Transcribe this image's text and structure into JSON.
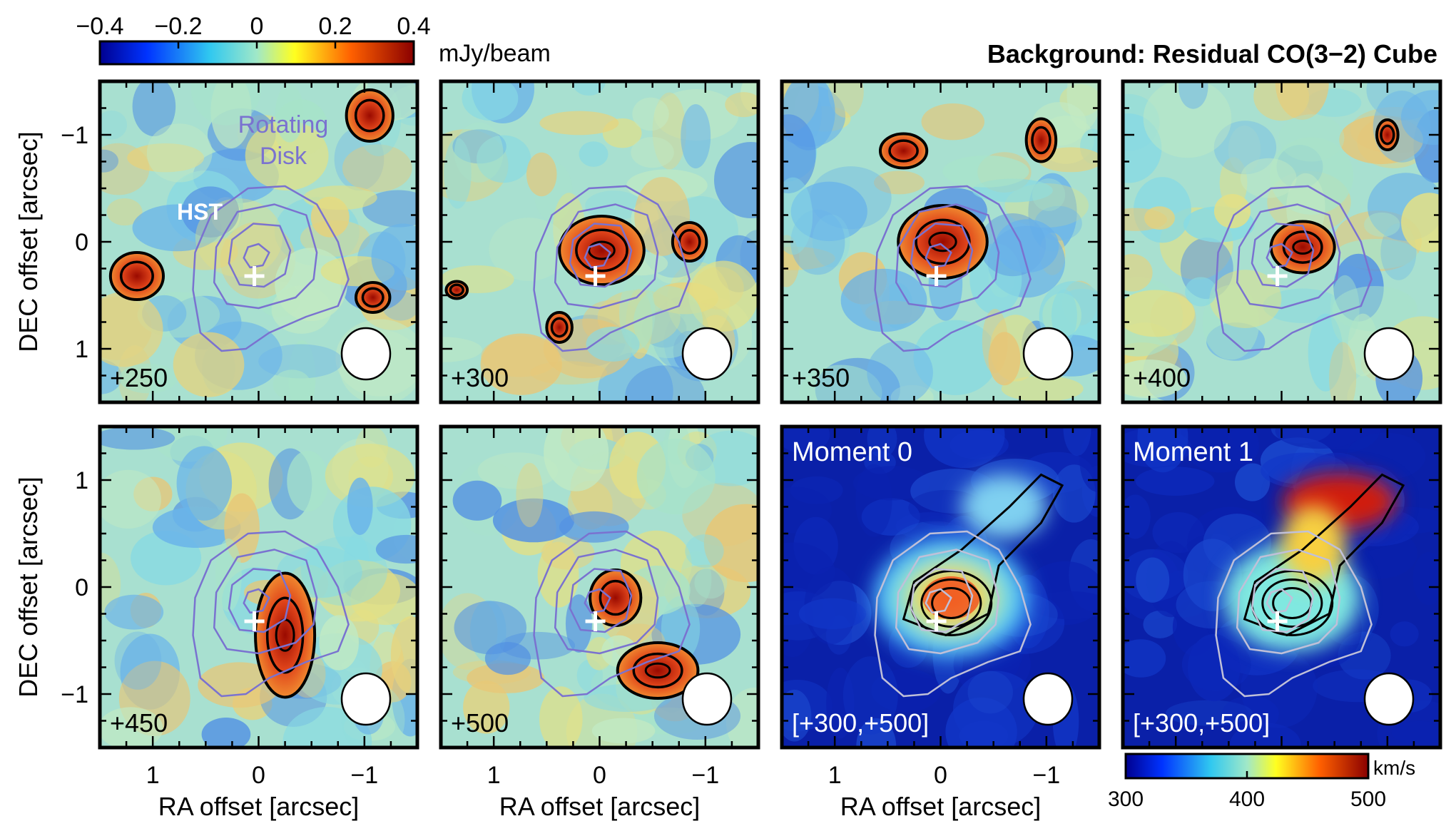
{
  "chart_data": {
    "type": "heatmap",
    "title": "Background: Residual CO(3−2) Cube",
    "xlabel": "RA offset [arcsec]",
    "ylabel": "DEC offset [arcsec]",
    "xlim": [
      1.5,
      -1.5
    ],
    "ylim": [
      1.5,
      -1.5
    ],
    "x_ticks": [
      "1",
      "0",
      "−1"
    ],
    "y_ticks_top": [
      "−1",
      "0",
      "1"
    ],
    "y_ticks_bottom": [
      "1",
      "0",
      "−1"
    ],
    "flux_colorbar": {
      "unit": "mJy/beam",
      "range": [
        -0.4,
        0.4
      ],
      "ticks": [
        "−0.4",
        "−0.2",
        "0",
        "0.2",
        "0.4"
      ]
    },
    "velocity_colorbar": {
      "unit": "km/s",
      "range": [
        300,
        500
      ],
      "ticks": [
        "300",
        "400",
        "500"
      ]
    },
    "annotations": {
      "rotating_disk": [
        "Rotating",
        "Disk"
      ],
      "hst": "HST"
    },
    "hst_position": [
      0.04,
      0.32
    ],
    "panels": [
      {
        "label": "+250",
        "kind": "channel",
        "velocity_kms": 250
      },
      {
        "label": "+300",
        "kind": "channel",
        "velocity_kms": 300
      },
      {
        "label": "+350",
        "kind": "channel",
        "velocity_kms": 350
      },
      {
        "label": "+400",
        "kind": "channel",
        "velocity_kms": 400
      },
      {
        "label": "+450",
        "kind": "channel",
        "velocity_kms": 450
      },
      {
        "label": "+500",
        "kind": "channel",
        "velocity_kms": 500
      },
      {
        "label": "Moment 0",
        "kind": "moment0",
        "range_label": "[+300,+500]"
      },
      {
        "label": "Moment 1",
        "kind": "moment1",
        "range_label": "[+300,+500]"
      }
    ],
    "disk_contours_arcsec": [
      [
        [
          -0.85,
          0.35
        ],
        [
          -0.75,
          0.0
        ],
        [
          -0.55,
          -0.35
        ],
        [
          -0.25,
          -0.52
        ],
        [
          0.1,
          -0.5
        ],
        [
          0.45,
          -0.25
        ],
        [
          0.6,
          0.1
        ],
        [
          0.62,
          0.45
        ],
        [
          0.55,
          0.85
        ],
        [
          0.35,
          1.02
        ],
        [
          0.12,
          1.0
        ],
        [
          -0.1,
          0.85
        ],
        [
          -0.45,
          0.7
        ],
        [
          -0.75,
          0.6
        ]
      ],
      [
        [
          -0.55,
          0.1
        ],
        [
          -0.45,
          -0.25
        ],
        [
          -0.15,
          -0.35
        ],
        [
          0.2,
          -0.28
        ],
        [
          0.4,
          0.05
        ],
        [
          0.42,
          0.38
        ],
        [
          0.3,
          0.58
        ],
        [
          0.0,
          0.62
        ],
        [
          -0.35,
          0.52
        ],
        [
          -0.52,
          0.35
        ]
      ],
      [
        [
          -0.3,
          0.08
        ],
        [
          -0.2,
          -0.15
        ],
        [
          0.05,
          -0.17
        ],
        [
          0.25,
          -0.02
        ],
        [
          0.28,
          0.2
        ],
        [
          0.18,
          0.4
        ],
        [
          -0.05,
          0.42
        ],
        [
          -0.25,
          0.3
        ]
      ],
      [
        [
          -0.1,
          0.1
        ],
        [
          0.0,
          0.02
        ],
        [
          0.1,
          0.05
        ],
        [
          0.14,
          0.15
        ],
        [
          0.08,
          0.24
        ],
        [
          -0.04,
          0.22
        ]
      ]
    ]
  }
}
